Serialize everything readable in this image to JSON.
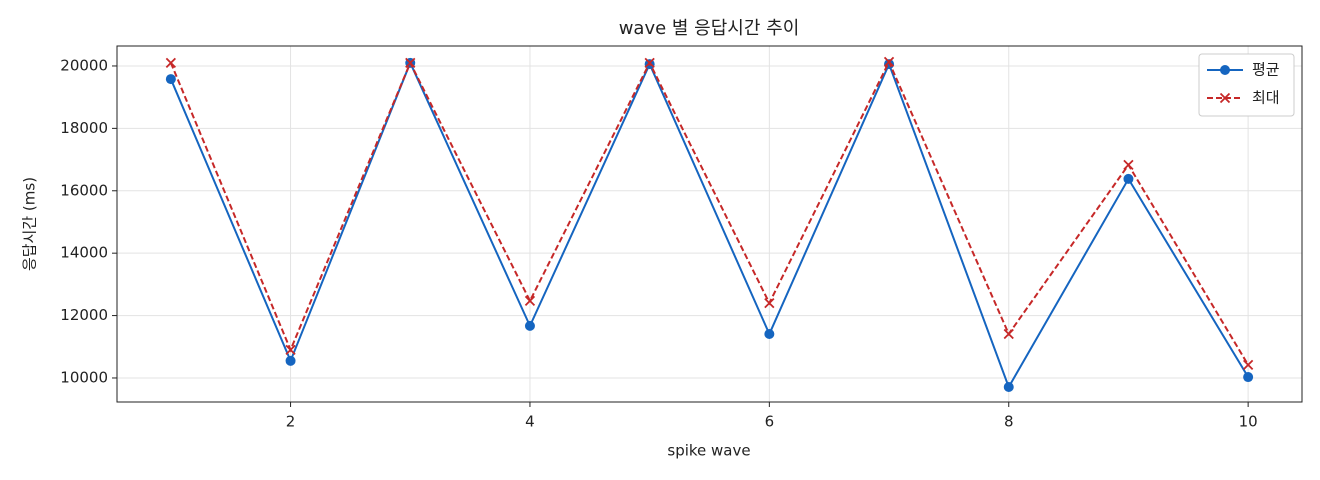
{
  "chart_data": {
    "type": "line",
    "title": "wave 별 응답시간 추이",
    "x_label": "spike wave",
    "y_label": "응답시간 (ms)",
    "x": [
      1,
      2,
      3,
      4,
      5,
      6,
      7,
      8,
      9,
      10
    ],
    "series": [
      {
        "name": "평균",
        "color": "#1565c0",
        "marker": "o",
        "linestyle": "solid",
        "values": [
          19580,
          10550,
          20100,
          11670,
          20060,
          11410,
          20060,
          9710,
          16380,
          10030
        ]
      },
      {
        "name": "최대",
        "color": "#c62828",
        "marker": "x",
        "linestyle": "dashed",
        "values": [
          20100,
          10900,
          20100,
          12470,
          20100,
          12400,
          20130,
          11410,
          16830,
          10420
        ]
      }
    ],
    "xlim": [
      0.55,
      10.45
    ],
    "xticks": [
      2,
      4,
      6,
      8,
      10
    ],
    "ylim": [
      9230,
      20640
    ],
    "yticks": [
      10000,
      12000,
      14000,
      16000,
      18000,
      20000
    ],
    "grid": true,
    "legend": "upper right"
  }
}
